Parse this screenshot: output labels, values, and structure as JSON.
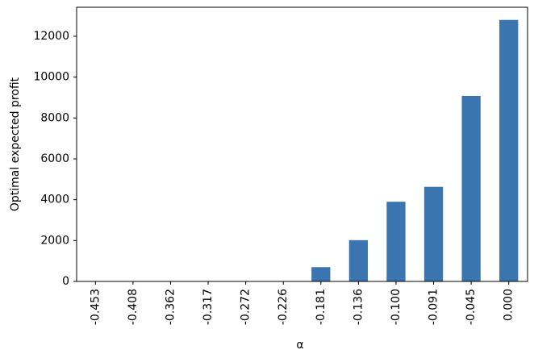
{
  "chart_data": {
    "type": "bar",
    "xlabel": "α",
    "ylabel": "Optimal expected profit",
    "categories": [
      "-0.453",
      "-0.408",
      "-0.362",
      "-0.317",
      "-0.272",
      "-0.226",
      "-0.181",
      "-0.136",
      "-0.100",
      "-0.091",
      "-0.045",
      "0.000"
    ],
    "values": [
      0,
      0,
      0,
      0,
      0,
      0,
      700,
      2020,
      3900,
      4630,
      9080,
      12800
    ],
    "color": "#3b75af",
    "ylim": [
      0,
      13420
    ],
    "yticks": [
      0,
      2000,
      4000,
      6000,
      8000,
      10000,
      12000
    ],
    "grid": false
  }
}
